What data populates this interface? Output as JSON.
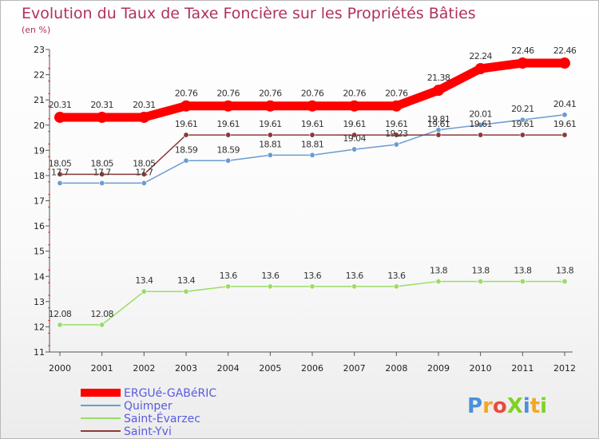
{
  "chart_data": {
    "type": "line",
    "title": "Evolution du Taux de Taxe Foncière sur les Propriétés Bâties",
    "subtitle": "(en %)",
    "categories": [
      "2000",
      "2001",
      "2002",
      "2003",
      "2004",
      "2005",
      "2006",
      "2007",
      "2008",
      "2009",
      "2010",
      "2011",
      "2012"
    ],
    "ylim": [
      11,
      23
    ],
    "yticks": [
      11,
      12,
      13,
      14,
      15,
      16,
      17,
      18,
      19,
      20,
      21,
      22,
      23
    ],
    "grid": false,
    "legend_position": "bottom-left",
    "series": [
      {
        "name": "ERGUé-GABéRIC",
        "color": "#ff0000",
        "values": [
          20.31,
          20.31,
          20.31,
          20.76,
          20.76,
          20.76,
          20.76,
          20.76,
          20.76,
          21.38,
          22.24,
          22.46,
          22.46
        ],
        "labels": [
          "20.31",
          "20.31",
          "20.31",
          "20.76",
          "20.76",
          "20.76",
          "20.76",
          "20.76",
          "20.76",
          "21.38",
          "22.24",
          "22.46",
          "22.46"
        ]
      },
      {
        "name": "Quimper",
        "color": "#6b9bd1",
        "values": [
          17.7,
          17.7,
          17.7,
          18.59,
          18.59,
          18.81,
          18.81,
          19.04,
          19.23,
          19.81,
          20.01,
          20.21,
          20.41
        ],
        "labels": [
          "17.7",
          "17.7",
          "17.7",
          "18.59",
          "18.59",
          "18.81",
          "18.81",
          "19.04",
          "19.23",
          "19.81",
          "20.01",
          "20.21",
          "20.41"
        ]
      },
      {
        "name": "Saint-Évarzec",
        "color": "#99dd66",
        "values": [
          12.08,
          12.08,
          13.4,
          13.4,
          13.6,
          13.6,
          13.6,
          13.6,
          13.6,
          13.8,
          13.8,
          13.8,
          13.8
        ],
        "labels": [
          "12.08",
          "12.08",
          "13.4",
          "13.4",
          "13.6",
          "13.6",
          "13.6",
          "13.6",
          "13.6",
          "13.8",
          "13.8",
          "13.8",
          "13.8"
        ]
      },
      {
        "name": "Saint-Yvi",
        "color": "#8b3a3a",
        "values": [
          18.05,
          18.05,
          18.05,
          19.61,
          19.61,
          19.61,
          19.61,
          19.61,
          19.61,
          19.61,
          19.61,
          19.61,
          19.61
        ],
        "labels": [
          "18.05",
          "18.05",
          "18.05",
          "19.61",
          "19.61",
          "19.61",
          "19.61",
          "19.61",
          "19.61",
          "19.61",
          "19.61",
          "19.61",
          "19.61"
        ]
      }
    ]
  },
  "logo": {
    "text": "ProXiti",
    "letters": [
      "P",
      "r",
      "o",
      "X",
      "i",
      "t",
      "i"
    ],
    "colors": [
      "#4a90d9",
      "#f5a623",
      "#e84c3d",
      "#7ed321",
      "#4a90d9",
      "#f5a623",
      "#7ed321"
    ]
  }
}
